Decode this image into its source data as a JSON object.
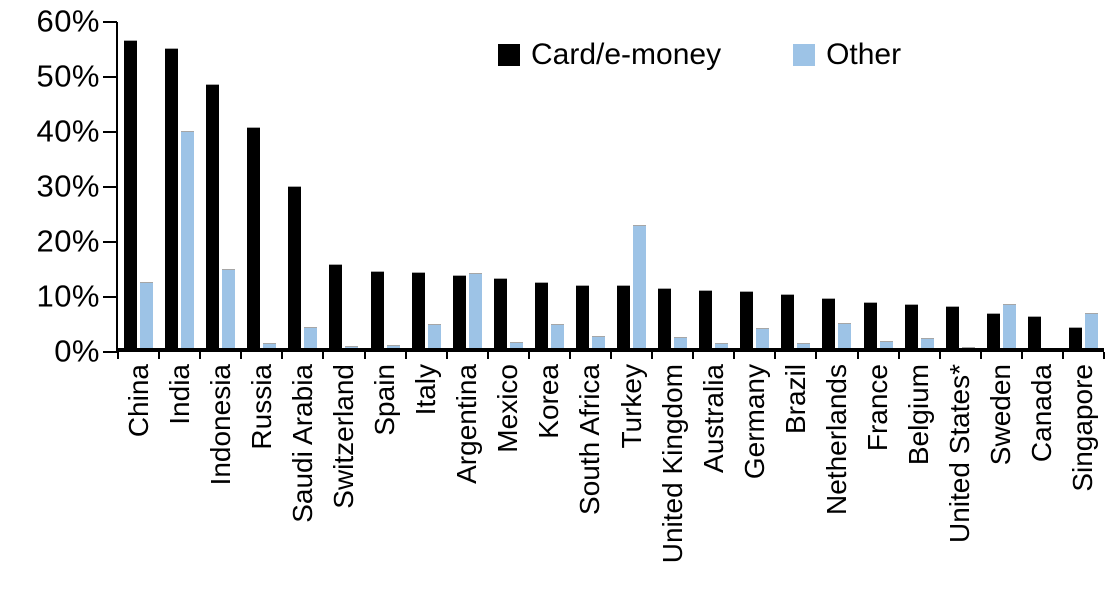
{
  "chart_data": {
    "type": "bar",
    "title": "",
    "xlabel": "",
    "ylabel": "",
    "grid": false,
    "legend_position": "top-center",
    "categories": [
      "China",
      "India",
      "Indonesia",
      "Russia",
      "Saudi Arabia",
      "Switzerland",
      "Spain",
      "Italy",
      "Argentina",
      "Mexico",
      "Korea",
      "South Africa",
      "Turkey",
      "United Kingdom",
      "Australia",
      "Germany",
      "Brazil",
      "Netherlands",
      "France",
      "Belgium",
      "United States*",
      "Sweden",
      "Canada",
      "Singapore"
    ],
    "series": [
      {
        "name": "Card/e-money",
        "color": "#000000",
        "values": [
          56.3,
          55.0,
          48.3,
          40.6,
          29.9,
          15.7,
          14.4,
          14.2,
          13.6,
          13.1,
          12.3,
          11.9,
          11.8,
          11.2,
          10.9,
          10.7,
          10.1,
          9.4,
          8.8,
          8.4,
          8.0,
          6.7,
          6.1,
          4.1
        ]
      },
      {
        "name": "Other",
        "color": "#9DC3E6",
        "values": [
          12.4,
          39.8,
          14.7,
          1.2,
          4.2,
          0.8,
          1.0,
          4.8,
          14.0,
          1.4,
          4.8,
          2.5,
          22.7,
          2.4,
          1.2,
          4.0,
          1.3,
          4.9,
          1.6,
          2.1,
          0.6,
          8.3,
          0.0,
          6.8
        ]
      }
    ],
    "y_axis": {
      "min": 0,
      "max": 60,
      "step": 10,
      "suffix": "%",
      "tick_labels": [
        "0%",
        "10%",
        "20%",
        "30%",
        "40%",
        "50%",
        "60%"
      ]
    }
  }
}
